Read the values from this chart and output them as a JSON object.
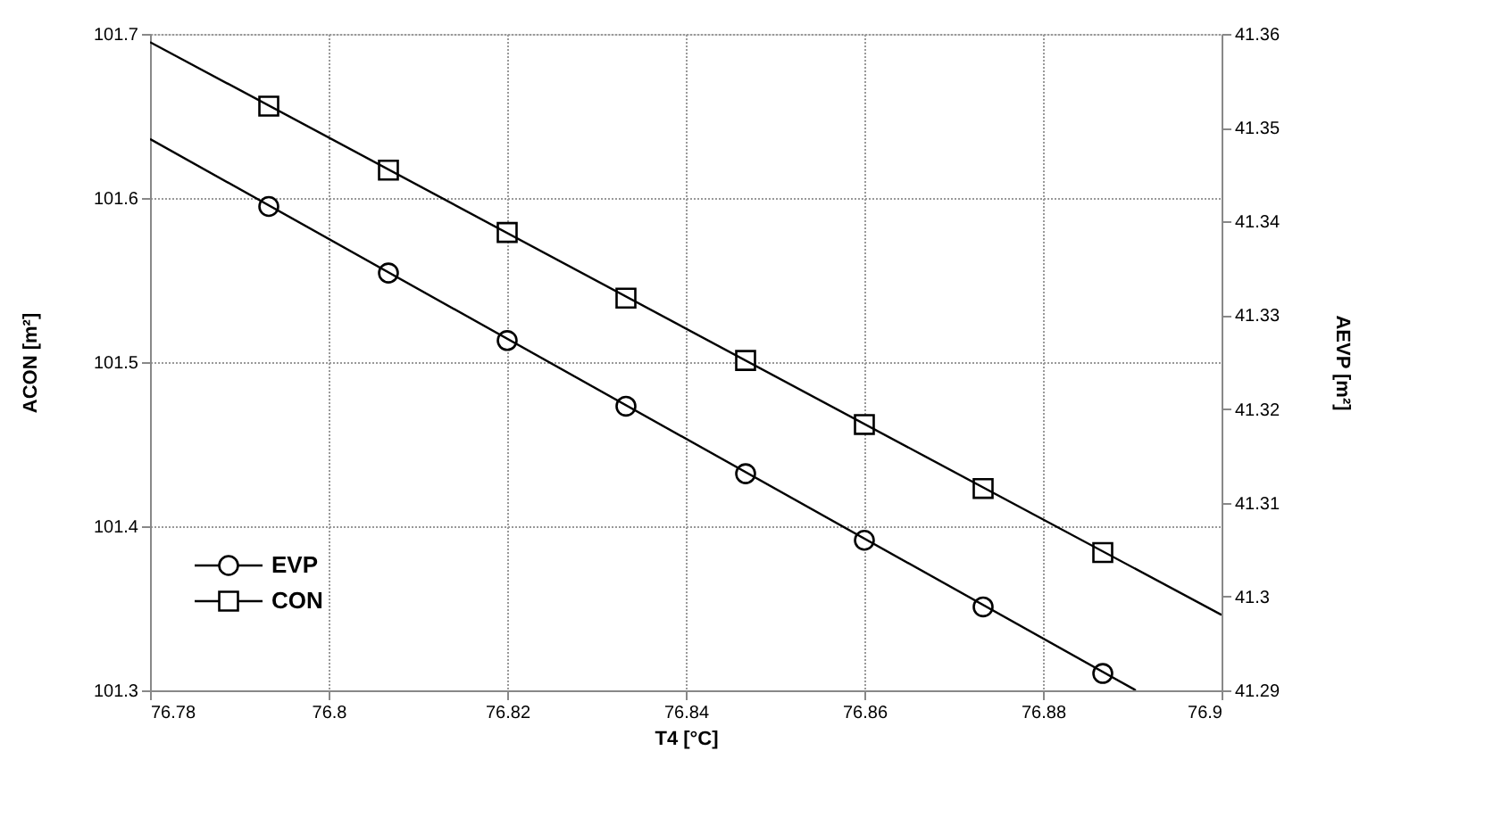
{
  "chart_data": {
    "type": "scatter",
    "xlabel": "T4 [°C]",
    "ylabel": "ACON [m²]",
    "y2label": "AEVP [m²]",
    "xlim": [
      76.78,
      76.9
    ],
    "xticks": [
      76.78,
      76.8,
      76.82,
      76.84,
      76.86,
      76.88,
      76.9
    ],
    "ylim": [
      101.3,
      101.7
    ],
    "yticks": [
      101.3,
      101.4,
      101.5,
      101.6,
      101.7
    ],
    "y2lim": [
      41.29,
      41.36
    ],
    "y2ticks": [
      41.29,
      41.3,
      41.31,
      41.32,
      41.33,
      41.34,
      41.35,
      41.36
    ],
    "grid": true,
    "legend": "bottom left",
    "series": [
      {
        "name": "EVP",
        "axis": "y2",
        "marker": "circle",
        "color": "#000000",
        "x": [
          76.7933,
          76.8067,
          76.82,
          76.8333,
          76.8467,
          76.86,
          76.8733,
          76.8867
        ],
        "values": [
          41.3416,
          41.3345,
          41.3273,
          41.3203,
          41.3131,
          41.306,
          41.2989,
          41.2918
        ]
      },
      {
        "type": "line",
        "axis": "y2",
        "color": "#000000",
        "x": [
          76.78,
          76.8904
        ],
        "values": [
          41.3488,
          41.29
        ]
      },
      {
        "name": "CON",
        "axis": "y",
        "marker": "square",
        "color": "#000000",
        "x": [
          76.7933,
          76.8067,
          76.82,
          76.8333,
          76.8467,
          76.86,
          76.8733,
          76.8867
        ],
        "values": [
          101.656,
          101.617,
          101.579,
          101.539,
          101.501,
          101.462,
          101.423,
          101.384
        ]
      },
      {
        "type": "line",
        "axis": "y",
        "color": "#000000",
        "x": [
          76.78,
          76.9
        ],
        "values": [
          101.695,
          101.346
        ]
      }
    ]
  }
}
